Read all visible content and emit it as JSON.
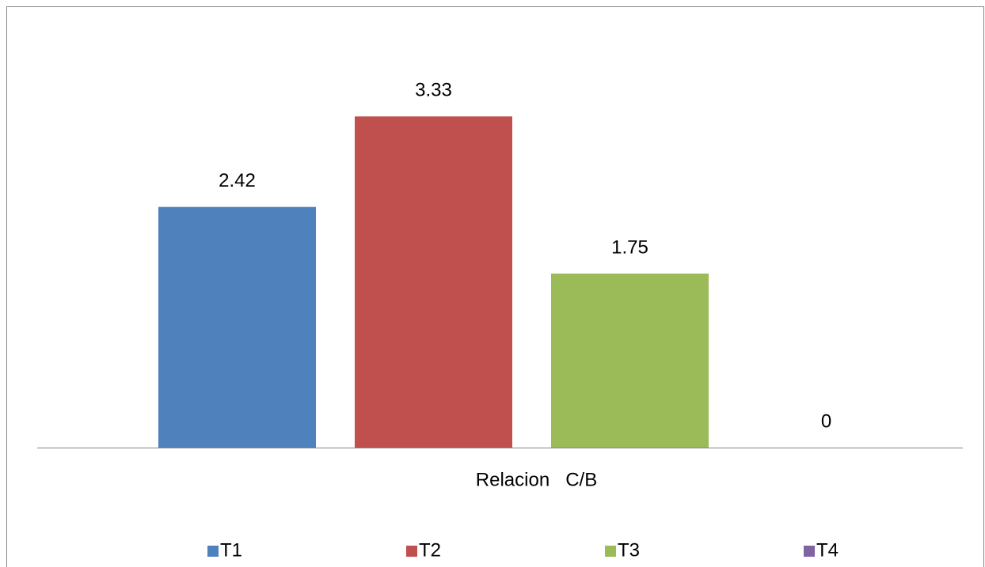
{
  "chart_data": {
    "type": "bar",
    "categories": [
      "Relacion   C/B"
    ],
    "series": [
      {
        "name": "T1",
        "color": "#4f81bd",
        "values": [
          2.42
        ]
      },
      {
        "name": "T2",
        "color": "#c0504d",
        "values": [
          3.33
        ]
      },
      {
        "name": "T3",
        "color": "#9bbb59",
        "values": [
          1.75
        ]
      },
      {
        "name": "T4",
        "color": "#8064a2",
        "values": [
          0
        ]
      }
    ],
    "ylim": [
      0,
      4
    ],
    "legend": "bottom"
  }
}
